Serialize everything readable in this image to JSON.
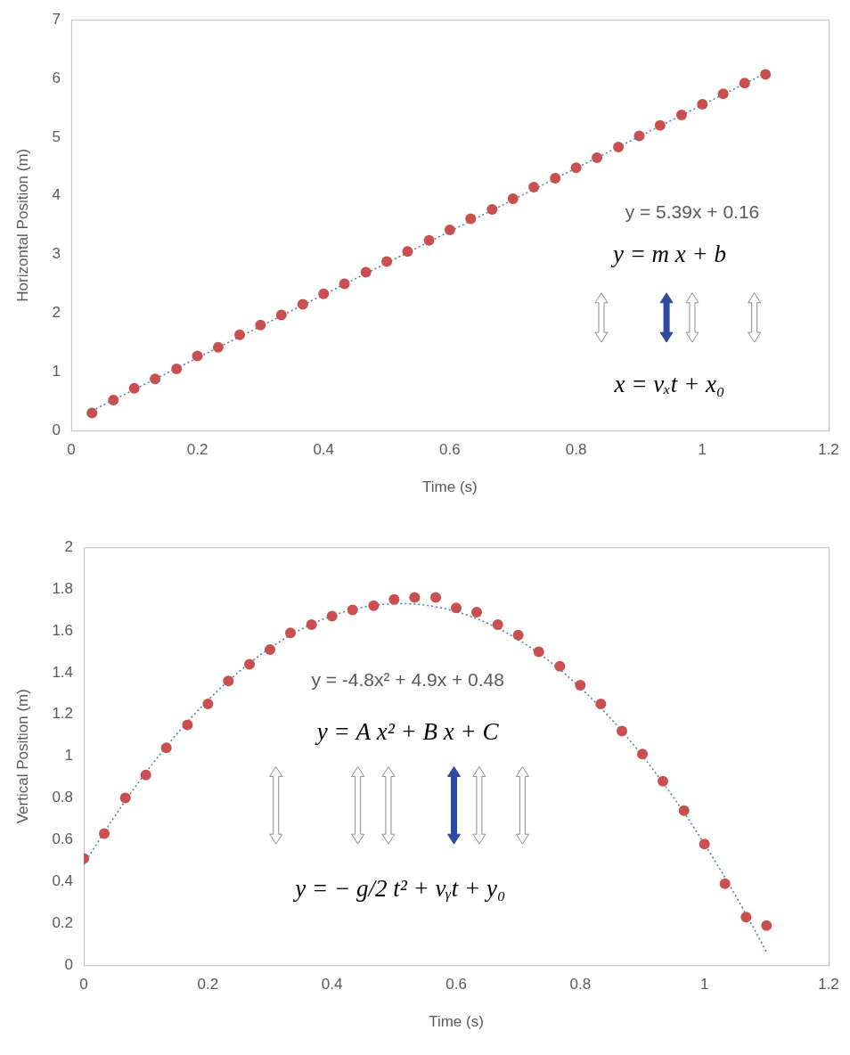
{
  "chart_data": [
    {
      "type": "scatter",
      "x_label": "Time (s)",
      "y_label": "Horizontal Position (m)",
      "x": [
        0.033,
        0.067,
        0.1,
        0.133,
        0.167,
        0.2,
        0.233,
        0.267,
        0.3,
        0.333,
        0.367,
        0.4,
        0.433,
        0.467,
        0.5,
        0.533,
        0.567,
        0.6,
        0.633,
        0.667,
        0.7,
        0.733,
        0.767,
        0.8,
        0.833,
        0.867,
        0.9,
        0.933,
        0.967,
        1,
        1.033,
        1.067,
        1.1
      ],
      "values": [
        0.3,
        0.52,
        0.72,
        0.88,
        1.05,
        1.27,
        1.42,
        1.63,
        1.8,
        1.97,
        2.15,
        2.33,
        2.5,
        2.7,
        2.88,
        3.05,
        3.24,
        3.42,
        3.61,
        3.77,
        3.95,
        4.15,
        4.3,
        4.48,
        4.65,
        4.83,
        5.02,
        5.2,
        5.38,
        5.56,
        5.74,
        5.92,
        6.07
      ],
      "color": "#c9504f",
      "marker": "circle",
      "fit": {
        "coefficients": [
          5.39,
          0.16
        ],
        "label": "y = 5.39x + 0.16",
        "color": "#4f81bd",
        "line_style": "dotted"
      },
      "annotations": [
        "y = m x + b",
        "x = vₓt + x₀"
      ],
      "xlim": [
        0,
        1.2
      ],
      "xticks": [
        0,
        0.2,
        0.4,
        0.6,
        0.8,
        1,
        1.2
      ],
      "ylim": [
        0,
        7
      ],
      "yticks": [
        0,
        1,
        2,
        3,
        4,
        5,
        6,
        7
      ],
      "grid": false
    },
    {
      "type": "scatter",
      "x_label": "Time (s)",
      "y_label": "Vertical Position (m)",
      "x": [
        0,
        0.033,
        0.067,
        0.1,
        0.133,
        0.167,
        0.2,
        0.233,
        0.267,
        0.3,
        0.333,
        0.367,
        0.4,
        0.433,
        0.467,
        0.5,
        0.533,
        0.567,
        0.6,
        0.633,
        0.667,
        0.7,
        0.733,
        0.767,
        0.8,
        0.833,
        0.867,
        0.9,
        0.933,
        0.967,
        1,
        1.033,
        1.067,
        1.1
      ],
      "values": [
        0.51,
        0.63,
        0.8,
        0.91,
        1.04,
        1.15,
        1.25,
        1.36,
        1.44,
        1.51,
        1.59,
        1.63,
        1.67,
        1.7,
        1.72,
        1.75,
        1.76,
        1.76,
        1.71,
        1.69,
        1.63,
        1.58,
        1.5,
        1.43,
        1.34,
        1.25,
        1.12,
        1.01,
        0.88,
        0.74,
        0.58,
        0.39,
        0.23,
        0.19
      ],
      "color": "#c9504f",
      "marker": "circle",
      "fit": {
        "coefficients": [
          -4.8,
          4.9,
          0.48
        ],
        "label": "y = -4.8x² + 4.9x + 0.48",
        "color": "#4f81bd",
        "line_style": "dotted"
      },
      "annotations": [
        "y = A x² + B x + C",
        "y = − g/2 t² + vᵧt + y₀"
      ],
      "xlim": [
        0,
        1.2
      ],
      "xticks": [
        0,
        0.2,
        0.4,
        0.6,
        0.8,
        1,
        1.2
      ],
      "ylim": [
        0,
        2
      ],
      "yticks": [
        0,
        0.2,
        0.4,
        0.6,
        0.8,
        1,
        1.2,
        1.4,
        1.6,
        1.8,
        2
      ],
      "grid": false
    }
  ]
}
